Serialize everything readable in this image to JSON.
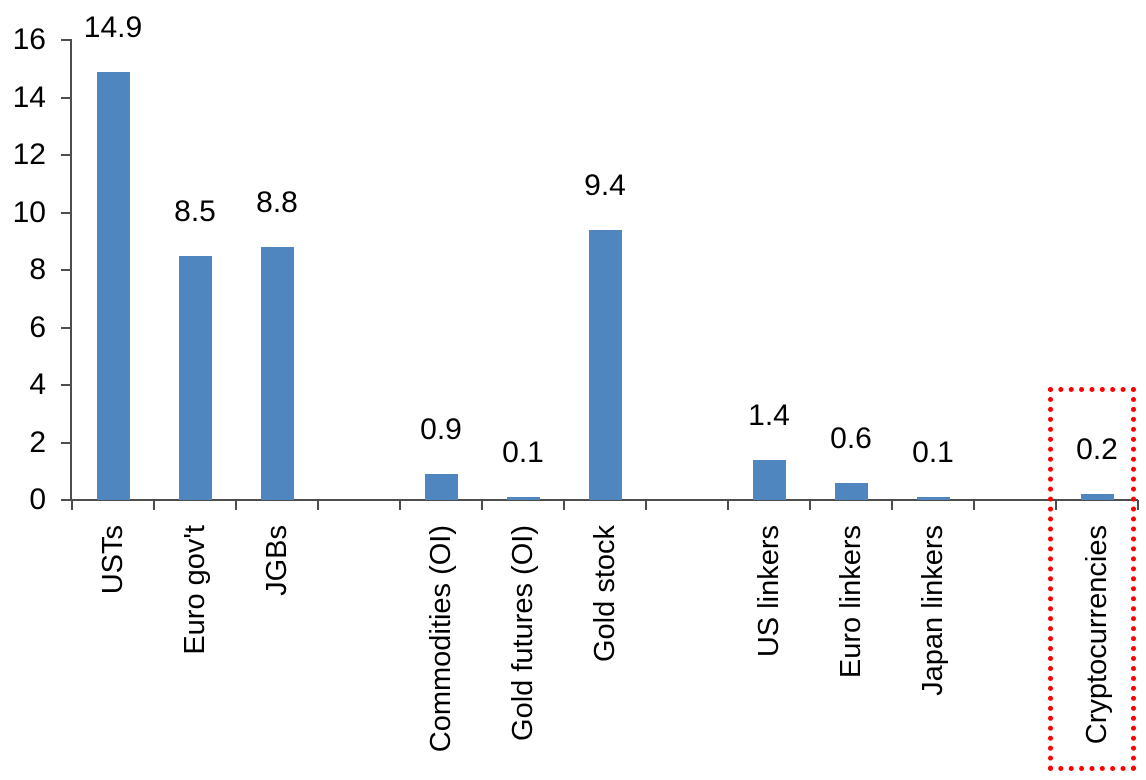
{
  "chart_data": {
    "type": "bar",
    "title": "",
    "xlabel": "",
    "ylabel": "",
    "categories": [
      "USTs",
      "Euro gov't",
      "JGBs",
      "Commodities (OI)",
      "Gold futures (OI)",
      "Gold stock",
      "US linkers",
      "Euro linkers",
      "Japan linkers",
      "Cryptocurrencies"
    ],
    "values": [
      14.9,
      8.5,
      8.8,
      0.9,
      0.1,
      9.4,
      1.4,
      0.6,
      0.1,
      0.2
    ],
    "value_labels": [
      "14.9",
      "8.5",
      "8.8",
      "0.9",
      "0.1",
      "9.4",
      "1.4",
      "0.6",
      "0.1",
      "0.2"
    ],
    "slot_indices": [
      0,
      1,
      2,
      4,
      5,
      6,
      8,
      9,
      10,
      12
    ],
    "total_slots": 13,
    "y_ticks": [
      "0",
      "2",
      "4",
      "6",
      "8",
      "10",
      "12",
      "14",
      "16"
    ],
    "y_tick_values": [
      0,
      2,
      4,
      6,
      8,
      10,
      12,
      14,
      16
    ],
    "ylim": [
      0,
      16
    ],
    "gridlines": false,
    "legend": false,
    "x_label_rotation": -90,
    "bar_color": "#4f86c0",
    "axis_color": "#4d4d4d",
    "text_color": "#000000",
    "highlight": {
      "category": "Cryptocurrencies",
      "box_color": "#ff0000",
      "box_style": "dotted"
    }
  }
}
